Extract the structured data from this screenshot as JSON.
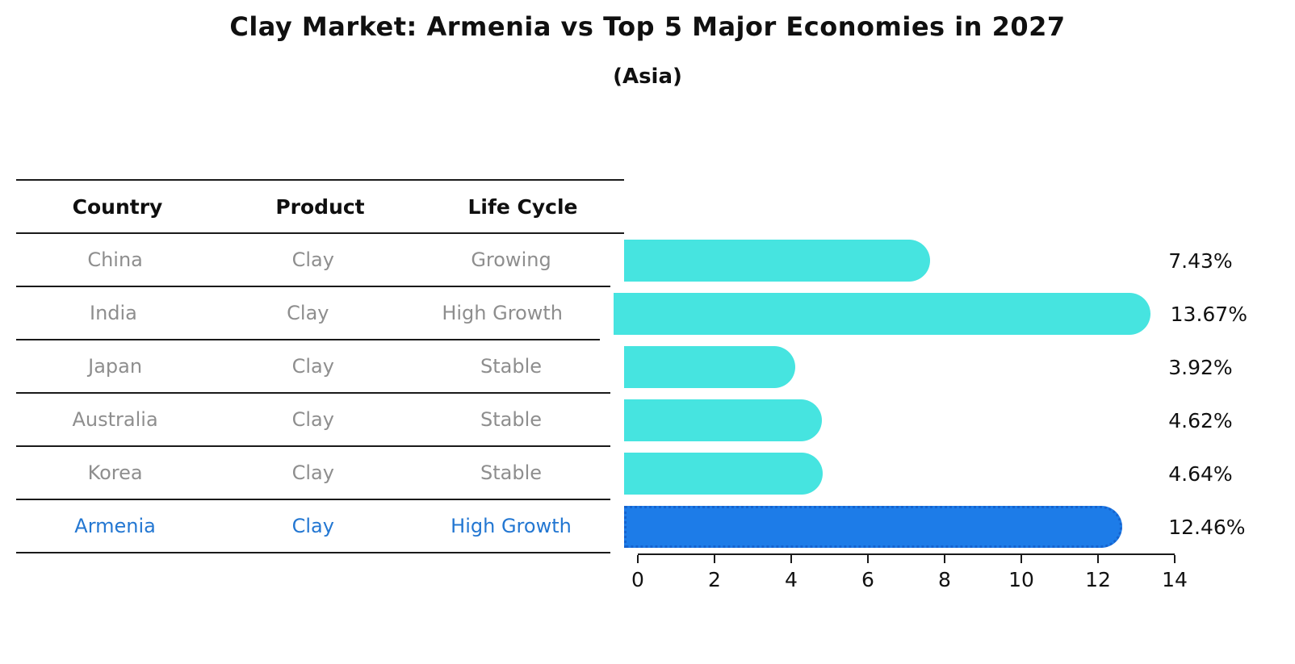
{
  "page": {
    "title": "Clay Market: Armenia vs Top 5 Major Economies in 2027",
    "subtitle": "(Asia)"
  },
  "table": {
    "headers": [
      "Country",
      "Product",
      "Life Cycle"
    ],
    "rows": [
      {
        "country": "China",
        "product": "Clay",
        "life_cycle": "Growing",
        "highlight": false
      },
      {
        "country": "India",
        "product": "Clay",
        "life_cycle": "High Growth",
        "highlight": false
      },
      {
        "country": "Japan",
        "product": "Clay",
        "life_cycle": "Stable",
        "highlight": false
      },
      {
        "country": "Australia",
        "product": "Clay",
        "life_cycle": "Stable",
        "highlight": false
      },
      {
        "country": "Korea",
        "product": "Clay",
        "life_cycle": "Stable",
        "highlight": false
      },
      {
        "country": "Armenia",
        "product": "Clay",
        "life_cycle": "High Growth",
        "highlight": true
      }
    ]
  },
  "chart_data": {
    "type": "bar",
    "orientation": "horizontal",
    "title": "Clay Market: Armenia vs Top 5 Major Economies in 2027",
    "subtitle": "(Asia)",
    "categories": [
      "China",
      "India",
      "Japan",
      "Australia",
      "Korea",
      "Armenia"
    ],
    "values": [
      7.43,
      13.67,
      3.92,
      4.62,
      4.64,
      12.46
    ],
    "value_labels": [
      "7.43%",
      "13.67%",
      "3.92%",
      "4.62%",
      "4.64%",
      "12.46%"
    ],
    "xlabel": "",
    "ylabel": "",
    "xlim": [
      0,
      14
    ],
    "x_ticks": [
      0,
      2,
      4,
      6,
      8,
      10,
      12,
      14
    ],
    "x_tick_labels": [
      "0",
      "2",
      "4",
      "6",
      "8",
      "10",
      "12",
      "14"
    ],
    "grid": false,
    "legend": false,
    "bar_color": "#46e4e0",
    "highlight_index": 5,
    "highlight_bar_color": "#1d7ce8",
    "highlight_border_color": "#1563cf",
    "highlight_text_color": "#2377d2"
  }
}
